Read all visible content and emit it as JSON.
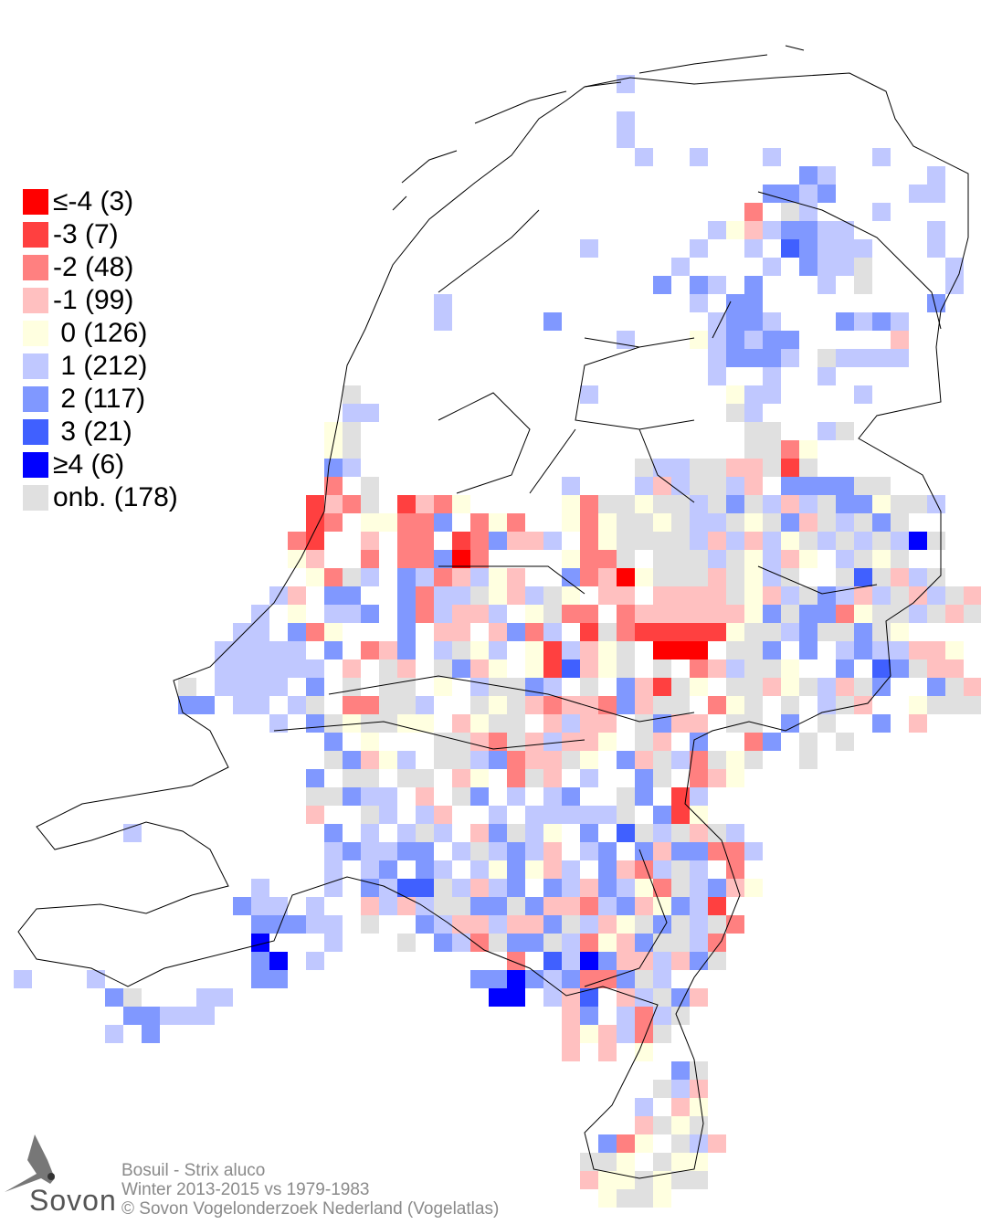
{
  "legend": {
    "items": [
      {
        "code": "a",
        "label": "≤-4 (3)",
        "color": "#ff0000"
      },
      {
        "code": "b",
        "label": "-3 (7)",
        "color": "#ff4040"
      },
      {
        "code": "c",
        "label": "-2 (48)",
        "color": "#ff8080"
      },
      {
        "code": "d",
        "label": "-1 (99)",
        "color": "#ffc0c0"
      },
      {
        "code": "0",
        "label": " 0 (126)",
        "color": "#ffffe0"
      },
      {
        "code": "1",
        "label": " 1 (212)",
        "color": "#c0c8ff"
      },
      {
        "code": "2",
        "label": " 2 (117)",
        "color": "#8098ff"
      },
      {
        "code": "3",
        "label": " 3 (21)",
        "color": "#4060ff"
      },
      {
        "code": "4",
        "label": "≥4 (6)",
        "color": "#0000ff"
      },
      {
        "code": "g",
        "label": "onb. (178)",
        "color": "#e0e0e0"
      }
    ]
  },
  "caption": {
    "species": "Bosuil - Strix aluco",
    "period": "Winter 2013-2015 vs 1979-1983",
    "copyright": "© Sovon Vogelonderzoek Nederland (Vogelatlas)"
  },
  "logo": {
    "text": "Sovon"
  },
  "grid_cells": [
    [
      4,
      33,
      "1"
    ],
    [
      6,
      33,
      "1"
    ],
    [
      7,
      33,
      "1"
    ],
    [
      8,
      34,
      "1"
    ],
    [
      8,
      37,
      "1"
    ],
    [
      8,
      41,
      "1"
    ],
    [
      8,
      47,
      "1"
    ],
    [
      9,
      43,
      "21"
    ],
    [
      9,
      50,
      "1"
    ],
    [
      10,
      41,
      "2212"
    ],
    [
      10,
      49,
      "11"
    ],
    [
      11,
      40,
      "c.g1"
    ],
    [
      11,
      47,
      "1"
    ],
    [
      12,
      38,
      "10d12211"
    ],
    [
      12,
      50,
      "1"
    ],
    [
      13,
      31,
      "1"
    ],
    [
      13,
      37,
      "1..1.32111"
    ],
    [
      13,
      50,
      "1"
    ],
    [
      14,
      36,
      "1....1.211g"
    ],
    [
      14,
      51,
      "1"
    ],
    [
      15,
      35,
      "2.21.2...1.g"
    ],
    [
      15,
      51,
      "1"
    ],
    [
      16,
      23,
      "1"
    ],
    [
      16,
      37,
      "1.22"
    ],
    [
      16,
      50,
      "2"
    ],
    [
      17,
      23,
      "1"
    ],
    [
      17,
      29,
      "2"
    ],
    [
      17,
      38,
      "1221...2121"
    ],
    [
      18,
      33,
      "1"
    ],
    [
      18,
      37,
      "012122.....d"
    ],
    [
      19,
      38,
      "12221.g1111"
    ],
    [
      20,
      38,
      "1..1..1"
    ],
    [
      21,
      18,
      "g"
    ],
    [
      21,
      31,
      "1"
    ],
    [
      21,
      39,
      "011....1"
    ],
    [
      22,
      18,
      "11"
    ],
    [
      22,
      39,
      "g1"
    ],
    [
      23,
      17,
      "0g"
    ],
    [
      23,
      40,
      "gg..1g"
    ],
    [
      24,
      17,
      "0g"
    ],
    [
      24,
      40,
      "ggc0"
    ],
    [
      25,
      17,
      "21"
    ],
    [
      25,
      34,
      "g11ggddgbg"
    ],
    [
      26,
      17,
      "c.g"
    ],
    [
      26,
      30,
      "1...1d1gg1d.2222gg"
    ],
    [
      27,
      16,
      "bdcg.b"
    ],
    [
      27,
      22,
      "dc0"
    ],
    [
      27,
      30,
      "0cgg0gg1g2g1d1g220gg1"
    ],
    [
      28,
      16,
      "bc.00cc2.c0c"
    ],
    [
      28,
      30,
      "0c0gg0g11g0g2dg1g2g"
    ],
    [
      29,
      15,
      "cb..d.cc.bc2dd1"
    ],
    [
      29,
      31,
      "c0gggg1d1d10g1g1g14g"
    ],
    [
      30,
      15,
      "0d..c.cc2ac.."
    ],
    [
      30,
      30,
      "0ccg.ggg1g01d0.1g0g"
    ],
    [
      31,
      16,
      "0cg1.21cd10d"
    ],
    [
      31,
      30,
      "2cda0gggdg01g..g3gd1g"
    ],
    [
      32,
      14,
      "1d.22..2c11g0d1g0.dd.ddddg0d1g21d1gd1gd"
    ],
    [
      33,
      13,
      "1.0.112.2c1dd1.0gcc.cdddddd02g22c0gg1gdg"
    ],
    [
      34,
      12,
      "11.2c0...2.dd.d2c1.bgcbbbbb0gg12gg2g0"
    ],
    [
      35,
      11,
      "11111.2.cd2.1g01.0b1d0g.aaa.gg2.2.1211dd0"
    ],
    [
      36,
      11,
      "111111.d.gd.g2d0.0b3d0g.g.cd1gg0..2.32gdd"
    ],
    [
      37,
      9,
      "g.1111.2.g.gg.0.1gg21.g.2dbg0.ggd0g1dg2..2gdd0"
    ],
    [
      38,
      9,
      "22.11.1g.ccgg1..g0gdcddc2dgg.c0g.g.1gd..0gggcd"
    ],
    [
      39,
      14,
      "1.2g0gg00.d0gg.d1dd.g2dd.gg.2.g..2.d"
    ],
    [
      40,
      15,
      "..2.0...ggdcgd1dd0.gd.2..c2.g.g"
    ],
    [
      41,
      15,
      "..g2d01.gg12cddg0.2dg1cg0g..g."
    ],
    [
      42,
      16,
      "2.gg.gg.d0.cgd.1..2g.cd0"
    ],
    [
      43,
      15,
      ".gg211.d.g2.1.12..g2.b1"
    ],
    [
      44,
      16,
      "d..g1.1d..1.11111g.2b0"
    ],
    [
      45,
      6,
      "1"
    ],
    [
      45,
      17,
      "2.1.1g1.d2g10.2.3g1gdg1"
    ],
    [
      46,
      17,
      "121122.1g121d.12.2d22cc1"
    ],
    [
      47,
      17,
      "1.12.21.1020d1.2dc1g1.c"
    ],
    [
      48,
      13,
      "1...1.2133g1d12.21d210cg12d0"
    ],
    [
      49,
      12,
      "211.1..d1d1gg22g2ddc12d021b"
    ],
    [
      50,
      13,
      "22211.g..21dd1dd2g1d0g2g1gc"
    ],
    [
      51,
      13,
      "4...1...g.21cg22g1c0d2gg1c"
    ],
    [
      52,
      13,
      "24.1..........c.3142dd1d2g"
    ],
    [
      53,
      0,
      "1...1"
    ],
    [
      53,
      13,
      "22..........224212cc2g1"
    ],
    [
      54,
      5,
      "2g...11"
    ],
    [
      54,
      26,
      "44.1d3.d1g2d"
    ],
    [
      55,
      6,
      "22111"
    ],
    [
      55,
      27,
      "...d2.1c1g"
    ],
    [
      56,
      5,
      "1.2"
    ],
    [
      56,
      30,
      "d0d1cg"
    ],
    [
      57,
      30,
      "d.d.0"
    ],
    [
      58,
      36,
      "2g"
    ],
    [
      59,
      35,
      "g1d"
    ],
    [
      60,
      34,
      "1.d0"
    ],
    [
      61,
      34,
      "dg0g"
    ],
    [
      62,
      32,
      "2c0.g1d"
    ],
    [
      63,
      31,
      "gg0.g00"
    ],
    [
      64,
      31,
      "d00g0gg"
    ],
    [
      65,
      32,
      "0gg0"
    ]
  ]
}
